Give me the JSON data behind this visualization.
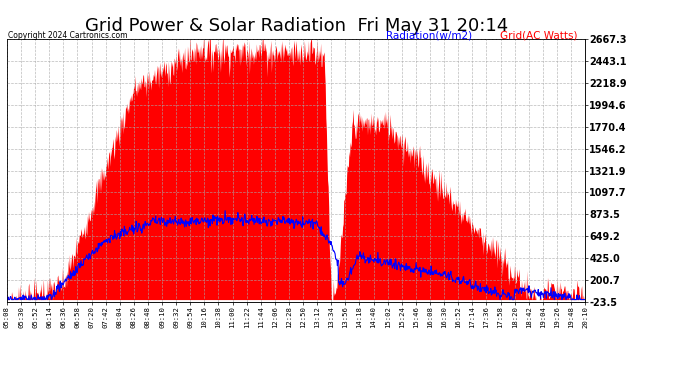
{
  "title": "Grid Power & Solar Radiation  Fri May 31 20:14",
  "copyright": "Copyright 2024 Cartronics.com",
  "legend_radiation": "Radiation(w/m2)",
  "legend_grid": "Grid(AC Watts)",
  "ylabel_right_ticks": [
    -23.5,
    200.7,
    425.0,
    649.2,
    873.5,
    1097.7,
    1321.9,
    1546.2,
    1770.4,
    1994.6,
    2218.9,
    2443.1,
    2667.3
  ],
  "ymin": -23.5,
  "ymax": 2667.3,
  "background_color": "#ffffff",
  "grid_color": "#aaaaaa",
  "radiation_color": "#0000ff",
  "grid_fill_color": "#ff0000",
  "title_fontsize": 13,
  "x_labels": [
    "05:08",
    "05:30",
    "05:52",
    "06:14",
    "06:36",
    "06:58",
    "07:20",
    "07:42",
    "08:04",
    "08:26",
    "08:48",
    "09:10",
    "09:32",
    "09:54",
    "10:16",
    "10:38",
    "11:00",
    "11:22",
    "11:44",
    "12:06",
    "12:28",
    "12:50",
    "13:12",
    "13:34",
    "13:56",
    "14:18",
    "14:40",
    "15:02",
    "15:24",
    "15:46",
    "16:08",
    "16:30",
    "16:52",
    "17:14",
    "17:36",
    "17:58",
    "18:20",
    "18:42",
    "19:04",
    "19:26",
    "19:48",
    "20:10"
  ]
}
